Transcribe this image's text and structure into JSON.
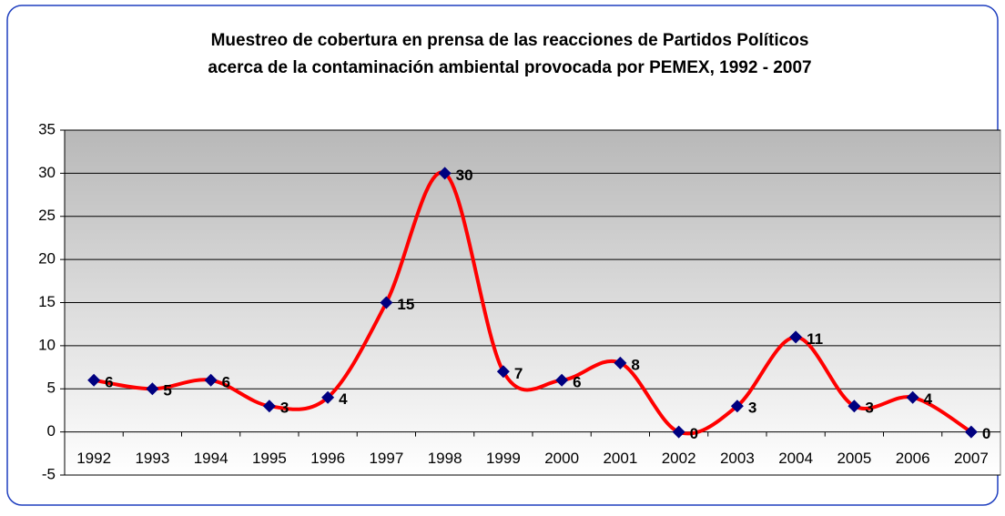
{
  "chart_data": {
    "type": "line",
    "title": [
      "Muestreo de cobertura en prensa de las reacciones de Partidos Políticos",
      "acerca de la contaminación ambiental provocada por PEMEX, 1992 - 2007"
    ],
    "categories": [
      "1992",
      "1993",
      "1994",
      "1995",
      "1996",
      "1997",
      "1998",
      "1999",
      "2000",
      "2001",
      "2002",
      "2003",
      "2004",
      "2005",
      "2006",
      "2007"
    ],
    "series": [
      {
        "color": "#ff0000",
        "marker_color": "#000080",
        "values": [
          6,
          5,
          6,
          3,
          4,
          15,
          30,
          7,
          6,
          8,
          0,
          3,
          11,
          3,
          4,
          0
        ]
      }
    ],
    "smooth": true,
    "ylim": [
      -5,
      35
    ],
    "yticks": [
      -5,
      0,
      5,
      10,
      15,
      20,
      25,
      30,
      35
    ],
    "grid": true
  }
}
